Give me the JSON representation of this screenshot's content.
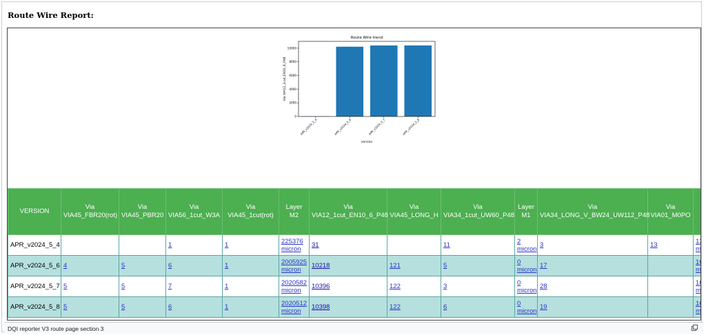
{
  "report": {
    "title": "Route Wire Report:"
  },
  "chart_data": {
    "type": "bar",
    "title": "Route Wire trend",
    "xlabel": "version",
    "ylabel": "Via VIA12_1cut_EN10_6_P48",
    "categories": [
      "APR_v2024_5_4",
      "APR_v2024_5_6",
      "APR_v2024_5_7",
      "APR_v2024_5_8"
    ],
    "values": [
      31,
      10218,
      10396,
      10398
    ],
    "ylim": [
      0,
      11000
    ],
    "yticks": [
      0,
      2000,
      4000,
      6000,
      8000,
      10000
    ],
    "bar_color": "#1f77b4",
    "grid": false
  },
  "table": {
    "columns": [
      [
        "VERSION"
      ],
      [
        "Via",
        "VIA45_FBR20(rot)"
      ],
      [
        "Via",
        "VIA45_PBR20"
      ],
      [
        "Via",
        "VIA56_1cut_W3A"
      ],
      [
        "Via",
        "VIA45_1cut(rot)"
      ],
      [
        "Layer",
        "M2"
      ],
      [
        "Via",
        "VIA12_1cut_EN10_6_P48"
      ],
      [
        "Via",
        "VIA45_LONG_H"
      ],
      [
        "Via",
        "VIA34_1cut_UW60_P48"
      ],
      [
        "Layer",
        "M1"
      ],
      [
        "Via",
        "VIA34_LONG_V_BW24_UW112_P48"
      ],
      [
        "Via",
        "VIA01_M0PO"
      ],
      [
        "Layer",
        "M7"
      ]
    ],
    "rows": [
      [
        "APR_v2024_5_4",
        "",
        "",
        "1",
        "1",
        "225376 micron",
        "31",
        "",
        "11",
        "2 micron",
        "3",
        "13",
        "13096 micron"
      ],
      [
        "APR_v2024_5_6",
        "4",
        "5",
        "6",
        "1",
        "2005925 micron",
        "10218",
        "121",
        "5",
        "0 micron",
        "17",
        "",
        "16071 micron"
      ],
      [
        "APR_v2024_5_7",
        "5",
        "5",
        "7",
        "1",
        "2020582 micron",
        "10396",
        "122",
        "3",
        "0 micron",
        "28",
        "",
        "16049 micron"
      ],
      [
        "APR_v2024_5_8",
        "5",
        "5",
        "6",
        "1",
        "2020512 micron",
        "10398",
        "122",
        "6",
        "0 micron",
        "19",
        "",
        "16056 micron"
      ]
    ]
  },
  "footer": {
    "caption": "DQI reporter V3 route page section 3",
    "icon": "expand-icon"
  },
  "colors": {
    "header_green": "#4caf50",
    "row_teal": "#b5e0de",
    "link": "#1a0dab"
  }
}
